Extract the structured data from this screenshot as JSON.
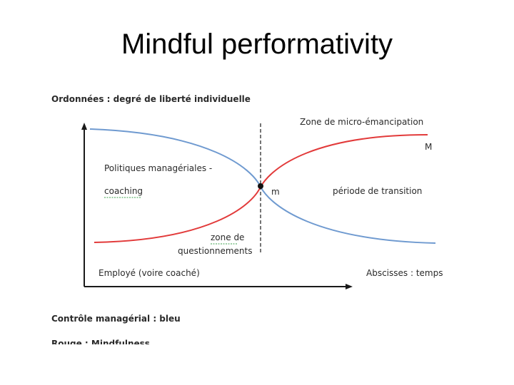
{
  "slide": {
    "title": "Mindful performativity"
  },
  "diagram": {
    "y_axis_title": "Ordonnées : degré de liberté individuelle",
    "x_axis_title": "Abscisses : temps",
    "zone_emancipation": "Zone de micro-émancipation",
    "label_M": "M",
    "label_m": "m",
    "transition": "période de transition",
    "policies_line1": "Politiques managériales -",
    "policies_line2": "coaching",
    "zone_questioning_line1": "zone de",
    "zone_questioning_line2": "questionnements",
    "employee": "Employé (voire coaché)",
    "legend_blue": "Contrôle managérial : bleu",
    "legend_red": "Rouge : Mindfulness",
    "colors": {
      "blue_curve": "#6f9ad0",
      "red_curve": "#e23a3a",
      "axis": "#1a1a1a",
      "text": "#2a2a2a"
    }
  }
}
